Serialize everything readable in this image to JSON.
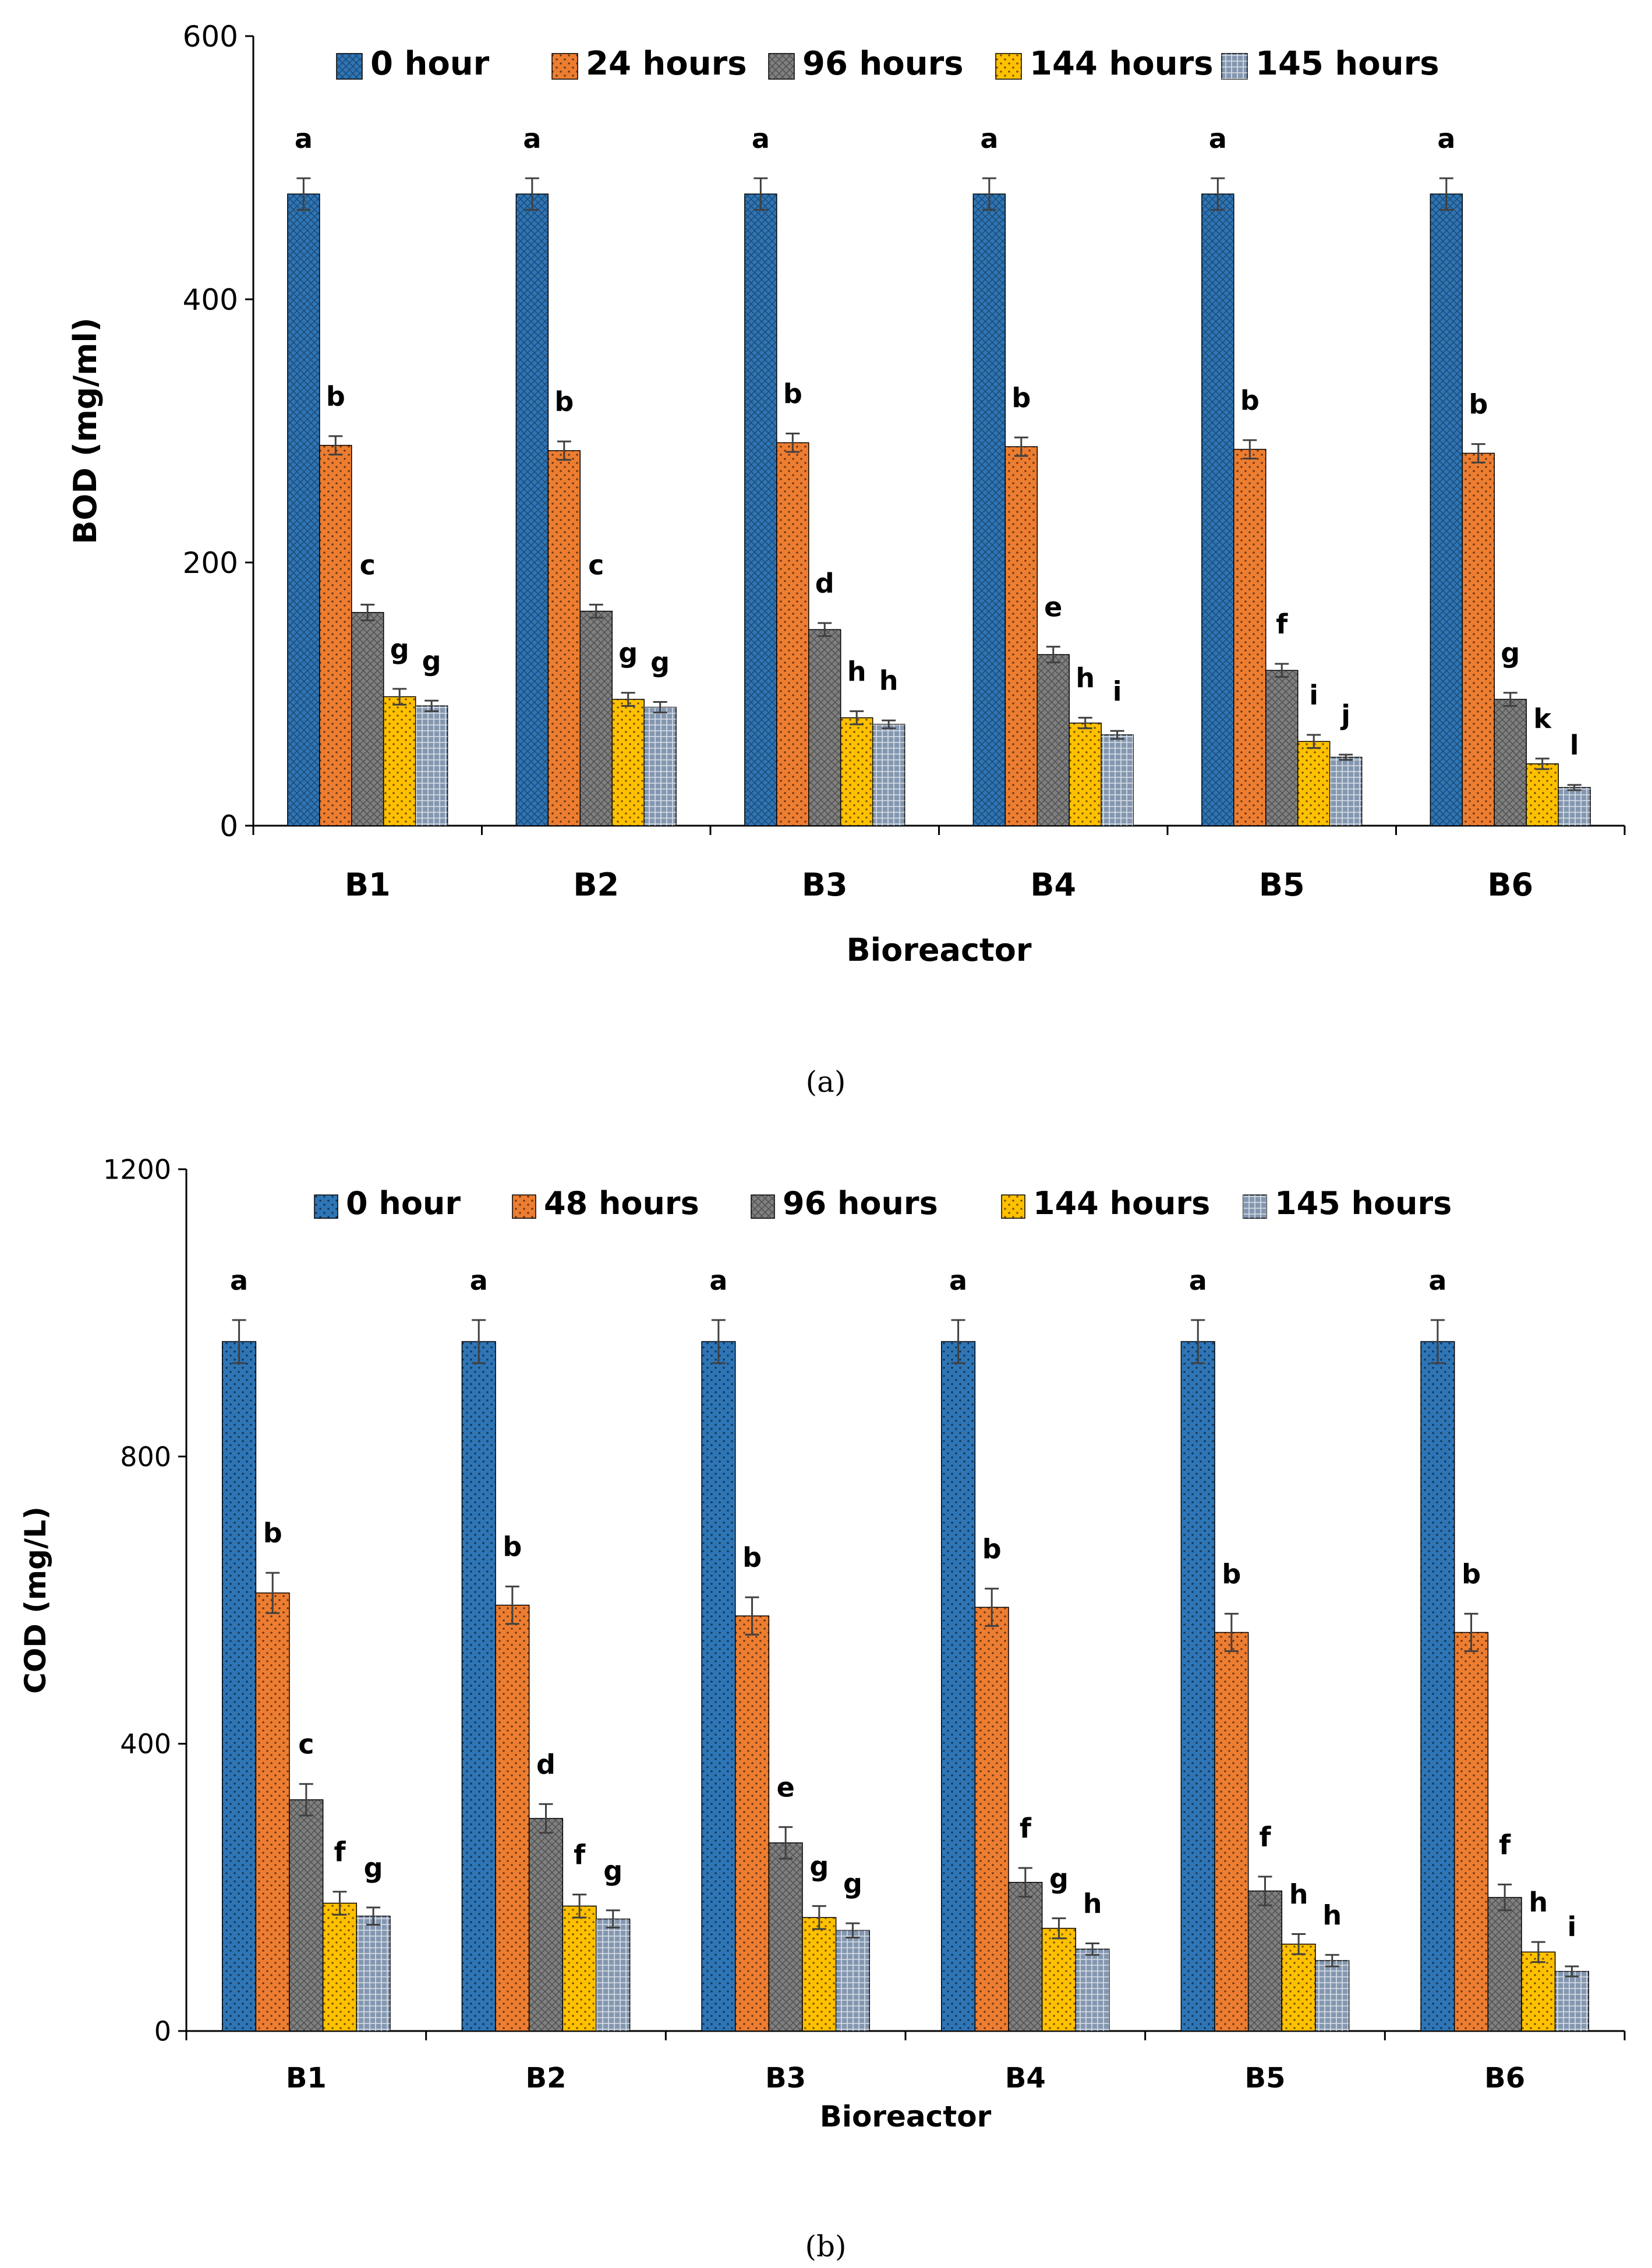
{
  "chart_data": [
    {
      "type": "bar",
      "panel_label": "(a)",
      "title": "",
      "xlabel": "Bioreactor",
      "ylabel": "BOD (mg/ml)",
      "ylim": [
        0,
        600
      ],
      "yticks": [
        0,
        200,
        400,
        600
      ],
      "categories": [
        "B1",
        "B2",
        "B3",
        "B4",
        "B5",
        "B6"
      ],
      "legend_position": "top",
      "series": [
        {
          "name": "0 hour",
          "color": "#2E75B6",
          "pattern": "hatch",
          "values": [
            480,
            480,
            480,
            480,
            480,
            480
          ],
          "errors": [
            12,
            12,
            12,
            12,
            12,
            12
          ],
          "letters": [
            "a",
            "a",
            "a",
            "a",
            "a",
            "a"
          ]
        },
        {
          "name": "24 hours",
          "color": "#ED7D31",
          "pattern": "dots",
          "values": [
            289,
            285,
            291,
            288,
            286,
            283
          ],
          "errors": [
            7,
            7,
            7,
            7,
            7,
            7
          ],
          "letters": [
            "b",
            "b",
            "b",
            "b",
            "b",
            "b"
          ]
        },
        {
          "name": "96 hours",
          "color": "#7F7F7F",
          "pattern": "hatch",
          "values": [
            162,
            163,
            149,
            130,
            118,
            96
          ],
          "errors": [
            6,
            5,
            5,
            6,
            5,
            5
          ],
          "letters": [
            "c",
            "c",
            "d",
            "e",
            "f",
            "g"
          ]
        },
        {
          "name": "144 hours",
          "color": "#FFC000",
          "pattern": "dots",
          "values": [
            98,
            96,
            82,
            78,
            64,
            47
          ],
          "errors": [
            6,
            5,
            5,
            4,
            5,
            4
          ],
          "letters": [
            "g",
            "g",
            "h",
            "h",
            "i",
            "k"
          ]
        },
        {
          "name": "145 hours",
          "color": "#8497B0",
          "pattern": "grid",
          "values": [
            91,
            90,
            77,
            69,
            52,
            29
          ],
          "errors": [
            4,
            4,
            3,
            3,
            2,
            2
          ],
          "letters": [
            "g",
            "g",
            "h",
            "i",
            "j",
            "l"
          ]
        }
      ]
    },
    {
      "type": "bar",
      "panel_label": "(b)",
      "title": "",
      "xlabel": "Bioreactor",
      "ylabel": "COD (mg/L)",
      "ylim": [
        0,
        1200
      ],
      "yticks": [
        0,
        400,
        800,
        1200
      ],
      "categories": [
        "B1",
        "B2",
        "B3",
        "B4",
        "B5",
        "B6"
      ],
      "legend_position": "top",
      "series": [
        {
          "name": "0 hour",
          "color": "#2E75B6",
          "pattern": "dots",
          "values": [
            960,
            960,
            960,
            960,
            960,
            960
          ],
          "errors": [
            30,
            30,
            30,
            30,
            30,
            30
          ],
          "letters": [
            "a",
            "a",
            "a",
            "a",
            "a",
            "a"
          ]
        },
        {
          "name": "48 hours",
          "color": "#ED7D31",
          "pattern": "dots",
          "values": [
            610,
            593,
            578,
            590,
            555,
            555
          ],
          "errors": [
            28,
            26,
            26,
            26,
            26,
            26
          ],
          "letters": [
            "b",
            "b",
            "b",
            "b",
            "b",
            "b"
          ]
        },
        {
          "name": "96 hours",
          "color": "#7F7F7F",
          "pattern": "hatch",
          "values": [
            322,
            296,
            262,
            207,
            195,
            186
          ],
          "errors": [
            22,
            20,
            22,
            20,
            20,
            18
          ],
          "letters": [
            "c",
            "d",
            "e",
            "f",
            "f",
            "f"
          ]
        },
        {
          "name": "144 hours",
          "color": "#FFC000",
          "pattern": "dots",
          "values": [
            178,
            174,
            158,
            143,
            121,
            110
          ],
          "errors": [
            16,
            16,
            16,
            14,
            14,
            14
          ],
          "letters": [
            "f",
            "f",
            "g",
            "g",
            "h",
            "h"
          ]
        },
        {
          "name": "145 hours",
          "color": "#8497B0",
          "pattern": "grid",
          "values": [
            160,
            156,
            140,
            114,
            98,
            83
          ],
          "errors": [
            12,
            12,
            10,
            8,
            8,
            7
          ],
          "letters": [
            "g",
            "g",
            "g",
            "h",
            "h",
            "i"
          ]
        }
      ]
    }
  ]
}
